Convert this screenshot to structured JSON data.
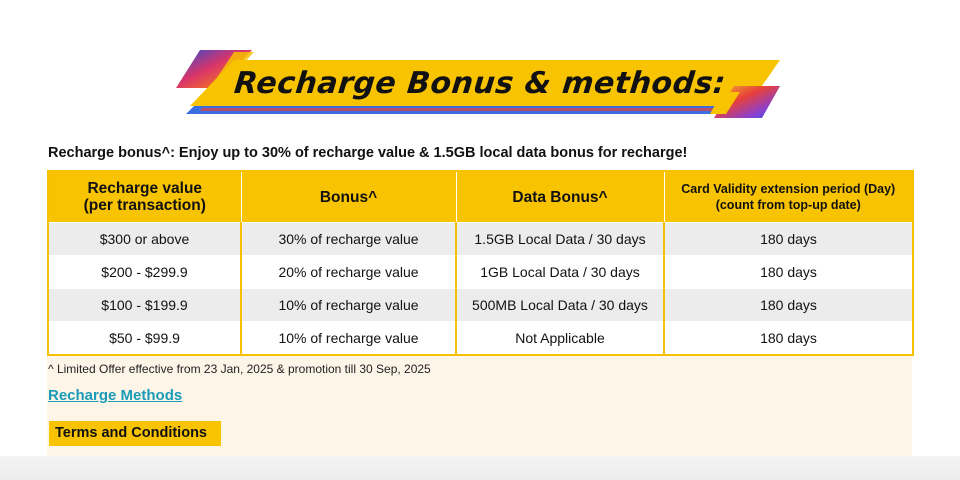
{
  "banner": {
    "title": "Recharge Bonus & methods:"
  },
  "intro_text": "Recharge bonus^: Enjoy up to 30% of recharge value & 1.5GB local data bonus for recharge!",
  "table": {
    "headers": {
      "recharge_value_line1": "Recharge value",
      "recharge_value_line2": "(per transaction)",
      "bonus": "Bonus^",
      "data_bonus": "Data Bonus^",
      "validity_line1": "Card Validity extension period (Day)",
      "validity_line2": "(count from top-up date)"
    },
    "rows": [
      [
        "$300 or above",
        "30% of recharge value",
        "1.5GB Local Data / 30 days",
        "180 days"
      ],
      [
        "$200 - $299.9",
        "20% of recharge value",
        "1GB Local Data / 30 days",
        "180 days"
      ],
      [
        "$100 - $199.9",
        "10% of recharge value",
        "500MB Local Data / 30 days",
        "180 days"
      ],
      [
        "$50 - $99.9",
        "10% of recharge value",
        "Not Applicable",
        "180 days"
      ]
    ]
  },
  "footnote": "^ Limited Offer effective from 23 Jan, 2025 & promotion till 30 Sep, 2025",
  "links": {
    "recharge_methods": "Recharge Methods",
    "terms": "Terms and Conditions"
  },
  "colors": {
    "accent_yellow": "#f8c300",
    "link_teal": "#1a9bb8",
    "row_grey": "#ececec",
    "content_bg": "#fdf5e8"
  }
}
